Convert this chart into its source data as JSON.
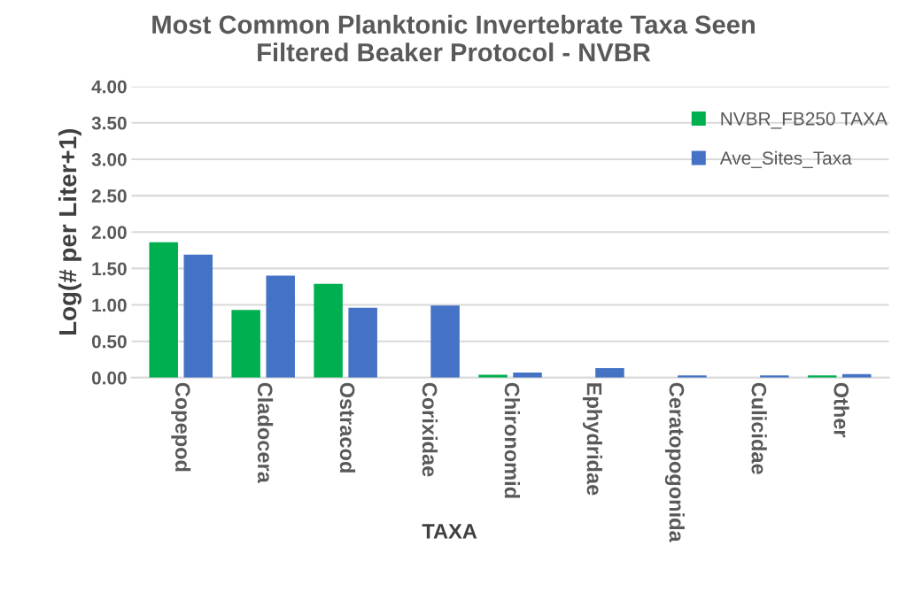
{
  "chart_data": {
    "type": "bar",
    "title": "Most Common Planktonic Invertebrate Taxa Seen\nFiltered Beaker Protocol - NVBR",
    "xlabel": "TAXA",
    "ylabel": "Log(# per Liter+1)",
    "categories": [
      "Copepod",
      "Cladocera",
      "Ostracod",
      "Corixidae",
      "Chironomid",
      "Ephydridae",
      "Ceratopogonida",
      "Culicidae",
      "Other"
    ],
    "series": [
      {
        "name": "NVBR_FB250 TAXA",
        "color": "#00b050",
        "values": [
          1.86,
          0.93,
          1.29,
          0,
          0.04,
          0,
          0,
          0,
          0.03
        ]
      },
      {
        "name": "Ave_Sites_Taxa",
        "color": "#4472c4",
        "values": [
          1.69,
          1.4,
          0.96,
          0.99,
          0.07,
          0.13,
          0.03,
          0.03,
          0.05
        ]
      }
    ],
    "ylim": [
      0,
      4
    ],
    "yticks": [
      {
        "value": 0,
        "label": "0.00"
      },
      {
        "value": 0.5,
        "label": "0.50"
      },
      {
        "value": 1,
        "label": "1.00"
      },
      {
        "value": 1.5,
        "label": "1.50"
      },
      {
        "value": 2,
        "label": "2.00"
      },
      {
        "value": 2.5,
        "label": "2.50"
      },
      {
        "value": 3,
        "label": "3.00"
      },
      {
        "value": 3.5,
        "label": "3.50"
      },
      {
        "value": 4,
        "label": "4.00"
      }
    ],
    "grid": "y",
    "legend": "top right"
  }
}
